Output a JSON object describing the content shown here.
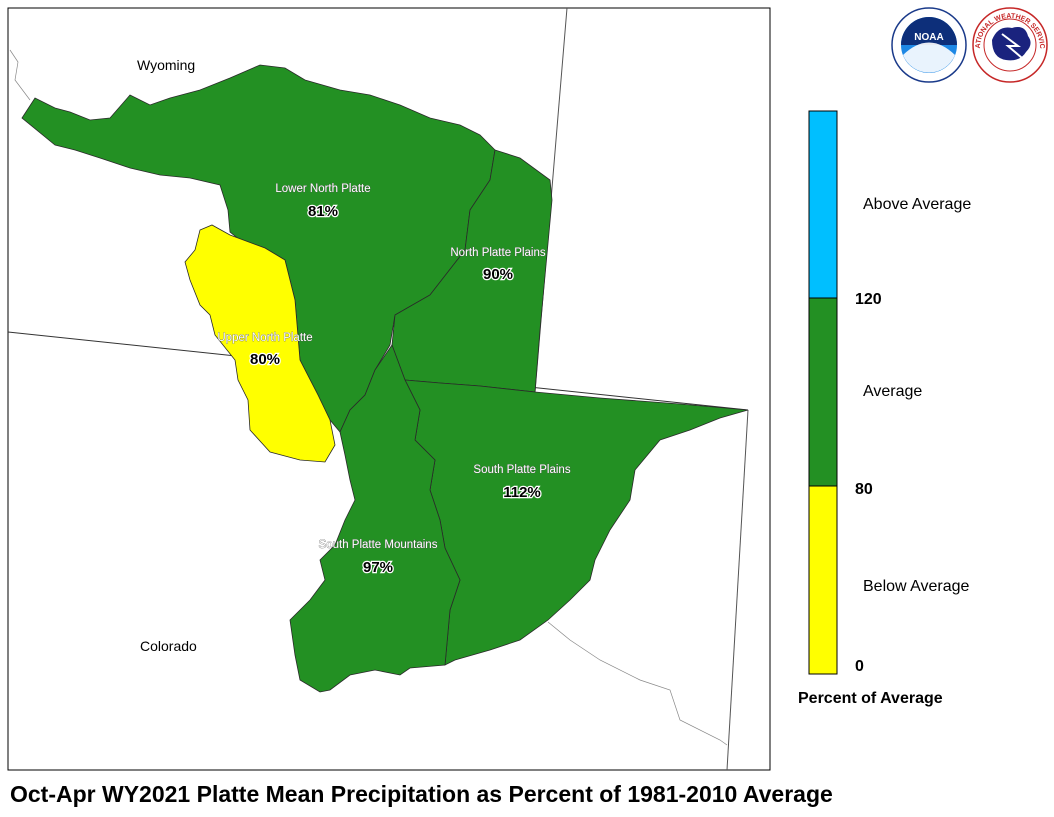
{
  "title": "Oct-Apr WY2021 Platte Mean Precipitation as Percent of 1981-2010 Average",
  "map": {
    "states": [
      {
        "name": "Wyoming"
      },
      {
        "name": "Colorado"
      }
    ],
    "basins": [
      {
        "name": "Lower North Platte",
        "percent": "81%",
        "category": "Average"
      },
      {
        "name": "North Platte Plains",
        "percent": "90%",
        "category": "Average"
      },
      {
        "name": "Upper North Platte",
        "percent": "80%",
        "category": "Below Average"
      },
      {
        "name": "South Platte Plains",
        "percent": "112%",
        "category": "Average"
      },
      {
        "name": "South Platte Mountains",
        "percent": "97%",
        "category": "Average"
      }
    ]
  },
  "legend": {
    "title": "Percent of Average",
    "bins": [
      {
        "label": "Above Average",
        "color": "#00bfff"
      },
      {
        "label": "Average",
        "color": "#239023"
      },
      {
        "label": "Below Average",
        "color": "#ffff00"
      }
    ],
    "ticks": [
      "120",
      "80",
      "0"
    ]
  },
  "logos": {
    "noaa": "NOAA",
    "nws": "NATIONAL WEATHER SERVICE"
  },
  "colors": {
    "average": "#239023",
    "below_average": "#ffff00",
    "above_average": "#00bfff",
    "boundary": "#333333"
  }
}
